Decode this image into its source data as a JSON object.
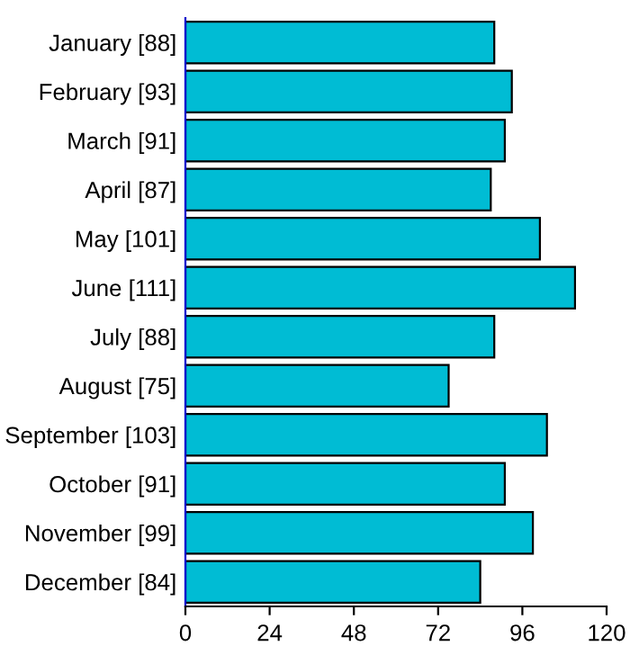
{
  "chart_data": {
    "type": "bar",
    "orientation": "horizontal",
    "categories": [
      "January [88]",
      "February [93]",
      "March [91]",
      "April [87]",
      "May [101]",
      "June [111]",
      "July [88]",
      "August [75]",
      "September [103]",
      "October [91]",
      "November [99]",
      "December [84]"
    ],
    "values": [
      88,
      93,
      91,
      87,
      101,
      111,
      88,
      75,
      103,
      91,
      99,
      84
    ],
    "color": "#00bcd4",
    "xlim": [
      0,
      120
    ],
    "xticks": [
      0,
      24,
      48,
      72,
      96,
      120
    ],
    "grid": false,
    "legend": false
  }
}
